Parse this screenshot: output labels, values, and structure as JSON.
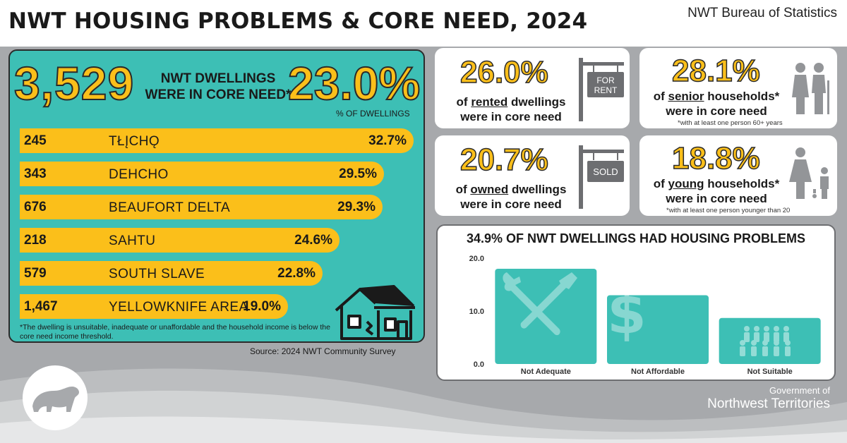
{
  "header": {
    "title": "NWT HOUSING PROBLEMS & CORE NEED, 2024",
    "org": "NWT Bureau of Statistics"
  },
  "core_need": {
    "dwellings": "3,529",
    "label_line1": "NWT DWELLINGS",
    "label_line2": "WERE IN CORE NEED*",
    "percent": "23.0%",
    "percent_caption": "% OF DWELLINGS",
    "regions": [
      {
        "count": "245",
        "name": "TŁĮCHǪ",
        "pct": "32.7%",
        "value": 32.7
      },
      {
        "count": "343",
        "name": "DEHCHO",
        "pct": "29.5%",
        "value": 29.5
      },
      {
        "count": "676",
        "name": "BEAUFORT DELTA",
        "pct": "29.3%",
        "value": 29.3
      },
      {
        "count": "218",
        "name": "SAHTU",
        "pct": "24.6%",
        "value": 24.6
      },
      {
        "count": "579",
        "name": "SOUTH SLAVE",
        "pct": "22.8%",
        "value": 22.8
      },
      {
        "count": "1,467",
        "name": "YELLOWKNIFE AREA",
        "pct": "19.0%",
        "value": 19.0
      }
    ],
    "footnote": "*The dwelling is unsuitable, inadequate or unaffordable and the household income is below the core need income threshold.",
    "source": "Source: 2024 NWT Community Survey"
  },
  "cards": {
    "rented": {
      "value": "26.0%",
      "pre": "of ",
      "keyword": "rented",
      "post": " dwellings",
      "line2": "were in core need",
      "sign": "FOR RENT",
      "sign_line1": "FOR",
      "sign_line2": "RENT"
    },
    "owned": {
      "value": "20.7%",
      "pre": "of ",
      "keyword": "owned",
      "post": " dwellings",
      "line2": "were in core need",
      "sign": "SOLD"
    },
    "senior": {
      "value": "28.1%",
      "pre": "of ",
      "keyword": "senior",
      "post": " households*",
      "line2": "were in core need",
      "note": "*with at least one person 60+ years"
    },
    "young": {
      "value": "18.8%",
      "pre": "of ",
      "keyword": "young",
      "post": " households*",
      "line2": "were in core need",
      "note": "*with at least one person younger than 20"
    }
  },
  "chart_data": {
    "type": "bar",
    "title": "34.9% OF NWT DWELLINGS HAD HOUSING PROBLEMS",
    "categories": [
      "Not Adequate",
      "Not Affordable",
      "Not Suitable"
    ],
    "values": [
      18.0,
      13.0,
      8.7
    ],
    "ylim": [
      0,
      20
    ],
    "yticks": [
      "0.0",
      "10.0",
      "20.0"
    ],
    "ytick_values": [
      0,
      10,
      20
    ],
    "bar_color": "#3dbfb5"
  },
  "footer": {
    "gov_of": "Government of",
    "gov_name": "Northwest Territories"
  },
  "colors": {
    "accent_yellow": "#fbbf1a",
    "teal": "#3dbfb5",
    "gray_bg": "#a7a9ac"
  }
}
